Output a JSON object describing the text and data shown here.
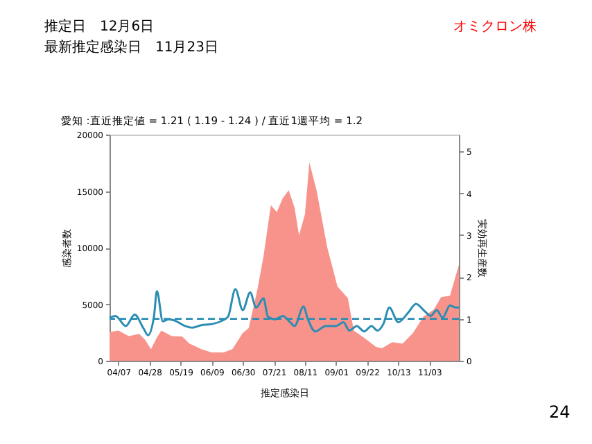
{
  "chart_data": {
    "type": "area",
    "title": "愛知 :直近推定値 = 1.21 ( 1.19 - 1.24 ) / 直近1週平均 = 1.2",
    "xlabel": "推定感染日",
    "ylabel": "感染者数",
    "y2label": "実効再生産数",
    "annotations": [
      "推定日　12月6日",
      "最新推定感染日　11月23日",
      "オミクロン株",
      "24"
    ],
    "xlim": [
      "--04-01",
      "--11-23"
    ],
    "xticks": [
      {
        "value": "--04-07",
        "label": "04/07"
      },
      {
        "value": "--04-28",
        "label": "04/28"
      },
      {
        "value": "--05-19",
        "label": "05/19"
      },
      {
        "value": "--06-09",
        "label": "06/09"
      },
      {
        "value": "--06-30",
        "label": "06/30"
      },
      {
        "value": "--07-21",
        "label": "07/21"
      },
      {
        "value": "--08-11",
        "label": "08/11"
      },
      {
        "value": "--09-01",
        "label": "09/01"
      },
      {
        "value": "--09-22",
        "label": "09/22"
      },
      {
        "value": "--10-13",
        "label": "10/13"
      },
      {
        "value": "--11-03",
        "label": "11/03"
      }
    ],
    "ylim": [
      0,
      20000
    ],
    "yticks": [
      0,
      5000,
      10000,
      15000,
      20000
    ],
    "y2lim": [
      0,
      5.4
    ],
    "y2ticks": [
      0,
      1,
      2,
      3,
      4,
      5
    ],
    "grid": false,
    "series": [
      {
        "color": "#f8938c",
        "x": [
          "--04-01",
          "--04-07",
          "--04-14",
          "--04-21",
          "--04-25",
          "--04-29",
          "--05-03",
          "--05-06",
          "--05-13",
          "--05-20",
          "--05-25",
          "--06-02",
          "--06-09",
          "--06-17",
          "--06-23",
          "--06-30",
          "--07-04",
          "--07-10",
          "--07-14",
          "--07-19",
          "--07-23",
          "--07-27",
          "--07-31",
          "--08-04",
          "--08-07",
          "--08-11",
          "--08-14",
          "--08-19",
          "--08-26",
          "--09-02",
          "--09-09",
          "--09-13",
          "--09-21",
          "--09-28",
          "--10-02",
          "--10-09",
          "--10-16",
          "--10-23",
          "--10-30",
          "--11-06",
          "--11-11",
          "--11-17",
          "--11-23"
        ],
        "values": [
          2550,
          2670,
          2180,
          2380,
          1850,
          1030,
          2050,
          2670,
          2180,
          2140,
          1520,
          1030,
          740,
          740,
          1030,
          2460,
          2880,
          6370,
          9240,
          13760,
          13140,
          14370,
          15070,
          13550,
          11090,
          12940,
          17540,
          14990,
          10060,
          6570,
          5540,
          2670,
          1930,
          1230,
          1110,
          1640,
          1520,
          2460,
          3900,
          4520,
          5630,
          5750,
          8500
        ]
      },
      {
        "type": "line",
        "axis": "y2",
        "color": "#2b8db3",
        "x": [
          "--04-01",
          "--04-05",
          "--04-12",
          "--04-18",
          "--04-24",
          "--04-27",
          "--05-01",
          "--05-03",
          "--05-07",
          "--05-11",
          "--05-15",
          "--05-22",
          "--05-27",
          "--06-02",
          "--06-08",
          "--06-15",
          "--06-20",
          "--06-25",
          "--06-30",
          "--07-05",
          "--07-09",
          "--07-14",
          "--07-17",
          "--07-22",
          "--07-27",
          "--08-01",
          "--08-04",
          "--08-10",
          "--08-13",
          "--08-18",
          "--08-25",
          "--09-01",
          "--09-06",
          "--09-10",
          "--09-15",
          "--09-20",
          "--09-25",
          "--09-29",
          "--10-03",
          "--10-07",
          "--10-13",
          "--10-20",
          "--10-25",
          "--10-31",
          "--11-04",
          "--11-08",
          "--11-12",
          "--11-17",
          "--11-21",
          "--11-23"
        ],
        "values": [
          1.03,
          1.07,
          0.83,
          1.1,
          0.77,
          0.61,
          1.05,
          1.66,
          0.94,
          0.99,
          0.96,
          0.83,
          0.79,
          0.85,
          0.87,
          0.94,
          1.05,
          1.71,
          1.21,
          1.63,
          1.27,
          1.49,
          1.05,
          0.99,
          1.07,
          0.92,
          0.83,
          1.29,
          0.99,
          0.7,
          0.83,
          0.83,
          0.92,
          0.72,
          0.83,
          0.7,
          0.83,
          0.72,
          0.88,
          1.27,
          0.92,
          1.16,
          1.36,
          1.18,
          1.07,
          1.21,
          1.03,
          1.32,
          1.27,
          1.27
        ]
      }
    ],
    "ref_lines": [
      {
        "axis": "y2",
        "value": 1,
        "color": "#2b8db3",
        "line_style": "dashed"
      }
    ]
  }
}
